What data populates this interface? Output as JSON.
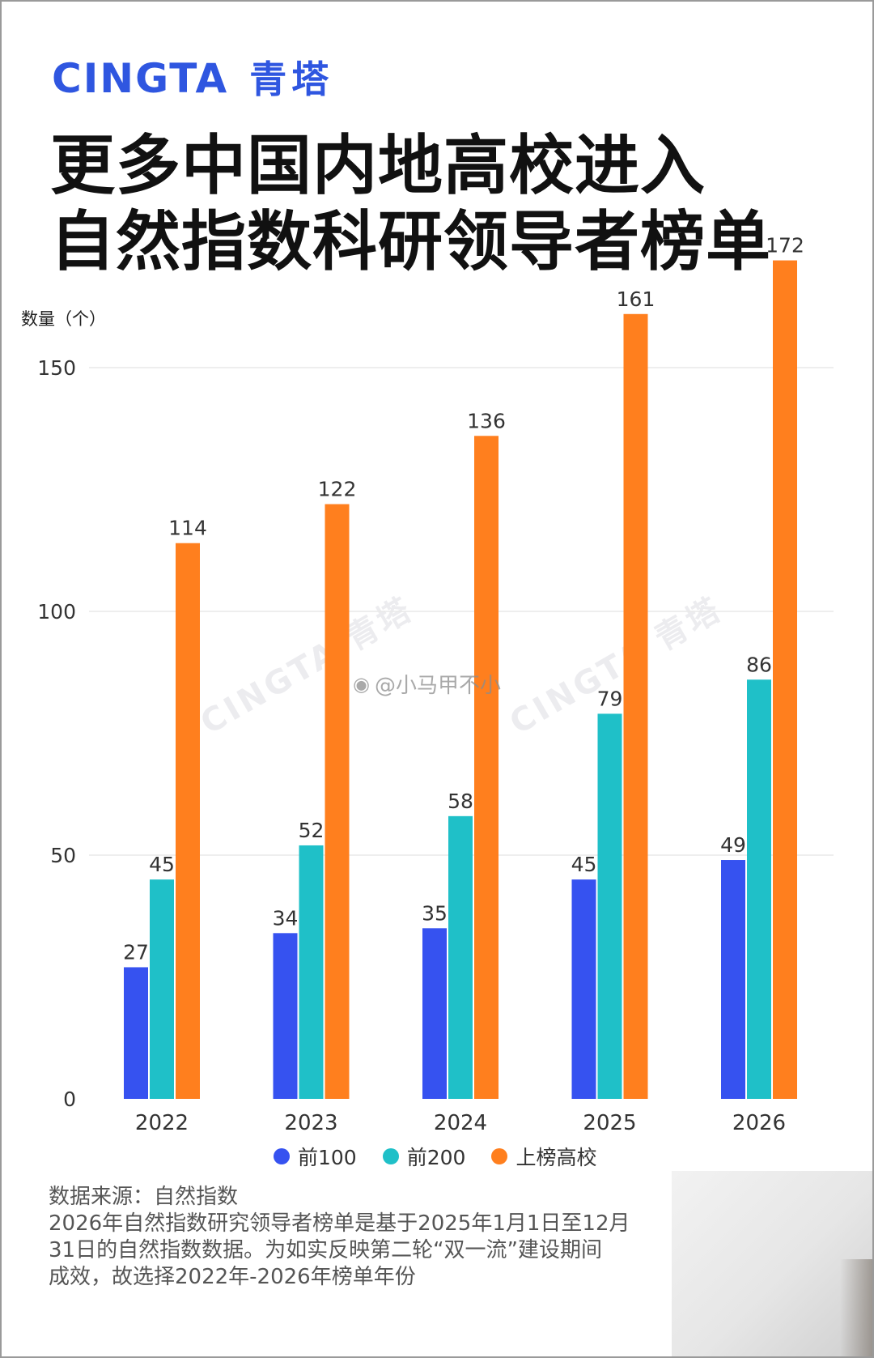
{
  "brand": {
    "name_en": "CINGTA",
    "name_cn": "青塔"
  },
  "title_lines": [
    "更多中国内地高校进入",
    "自然指数科研领导者榜单"
  ],
  "chart_data": {
    "type": "bar",
    "ylabel": "数量（个）",
    "categories": [
      "2022",
      "2023",
      "2024",
      "2025",
      "2026"
    ],
    "series": [
      {
        "name": "前100",
        "color": "#3652f0",
        "values": [
          27,
          34,
          35,
          45,
          49
        ]
      },
      {
        "name": "前200",
        "color": "#1fc0c8",
        "values": [
          45,
          52,
          58,
          79,
          86
        ]
      },
      {
        "name": "上榜高校",
        "color": "#ff7f1e",
        "values": [
          114,
          122,
          136,
          161,
          172
        ]
      }
    ],
    "yticks": [
      0,
      50,
      100,
      150
    ],
    "ylim": [
      0,
      172
    ],
    "grid": true,
    "legend": "bottom"
  },
  "notes": {
    "source": "数据来源：自然指数",
    "lines": [
      "2026年自然指数研究领导者榜单是基于2025年1月1日至12月",
      "31日的自然指数数据。为如实反映第二轮“双一流”建设期间",
      "成效，故选择2022年-2026年榜单年份"
    ]
  },
  "watermark": {
    "weibo": "@小马甲不小",
    "text": "CINGTA 青塔"
  }
}
